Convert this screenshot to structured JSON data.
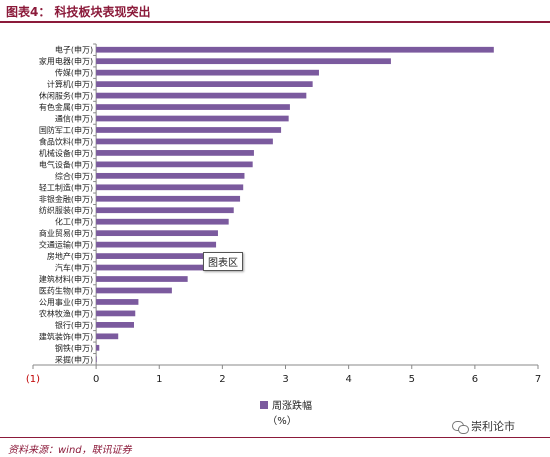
{
  "header": {
    "title": "图表4：  科技板块表现突出"
  },
  "footer": {
    "source": "资料来源：wind，联讯证券",
    "watermark": "崇利论市"
  },
  "tooltip": {
    "text": "图表区"
  },
  "chart_data": {
    "type": "bar",
    "orientation": "horizontal",
    "categories": [
      "电子(申万)",
      "家用电器(申万)",
      "传媒(申万)",
      "计算机(申万)",
      "休闲服务(申万)",
      "有色金属(申万)",
      "通信(申万)",
      "国防军工(申万)",
      "食品饮料(申万)",
      "机械设备(申万)",
      "电气设备(申万)",
      "综合(申万)",
      "轻工制造(申万)",
      "非银金融(申万)",
      "纺织服装(申万)",
      "化工(申万)",
      "商业贸易(申万)",
      "交通运输(申万)",
      "房地产(申万)",
      "汽车(申万)",
      "建筑材料(申万)",
      "医药生物(申万)",
      "公用事业(申万)",
      "农林牧渔(申万)",
      "银行(申万)",
      "建筑装饰(申万)",
      "钢铁(申万)",
      "采掘(申万)"
    ],
    "series": [
      {
        "name": "周涨跌幅",
        "values": [
          6.3,
          4.67,
          3.53,
          3.43,
          3.33,
          3.07,
          3.05,
          2.93,
          2.8,
          2.5,
          2.48,
          2.35,
          2.33,
          2.28,
          2.18,
          2.1,
          1.93,
          1.9,
          1.75,
          1.7,
          1.45,
          1.2,
          0.67,
          0.62,
          0.6,
          0.35,
          0.05,
          0.01
        ]
      }
    ],
    "xlim": [
      -1,
      7
    ],
    "xticks": [
      -1,
      0,
      1,
      2,
      3,
      4,
      5,
      6,
      7
    ],
    "xtick_labels": [
      "(1)",
      "0",
      "1",
      "2",
      "3",
      "4",
      "5",
      "6",
      "7"
    ],
    "negative_label_color": "#c00000",
    "legend_position": "bottom",
    "legend_unit": "（%）",
    "bar_color": "#7b5a9e",
    "grid": false
  }
}
